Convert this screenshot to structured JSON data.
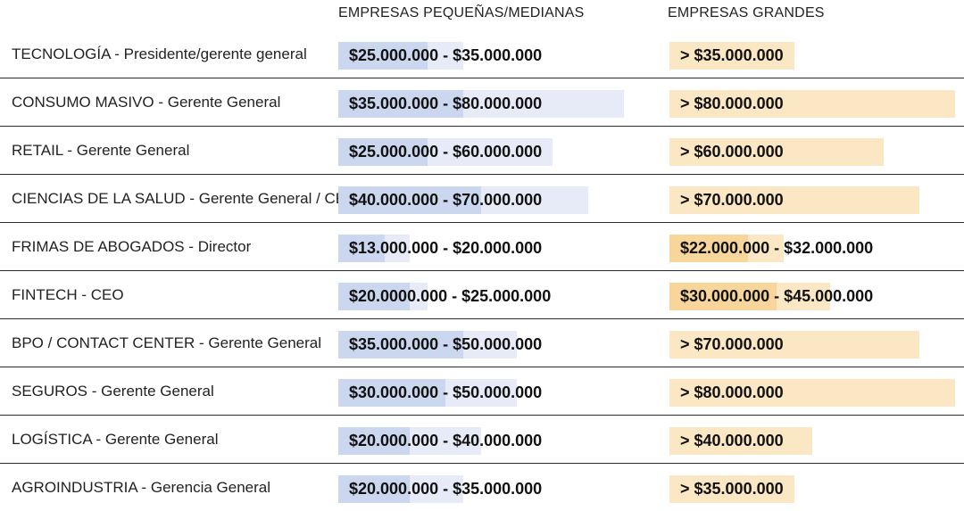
{
  "header": {
    "small_medium": "EMPRESAS PEQUEÑAS/MEDIANAS",
    "large": "EMPRESAS GRANDES"
  },
  "colors": {
    "small_range": "#e6ebf7",
    "small_min": "#cbd6ef",
    "large_range": "#fbe7c4",
    "large_min": "#f7d59b"
  },
  "chart_data": {
    "type": "bar",
    "title": "",
    "columns": [
      "EMPRESAS PEQUEÑAS/MEDIANAS",
      "EMPRESAS GRANDES"
    ],
    "rows": [
      {
        "label": "TECNOLOGÍA - Presidente/gerente general",
        "small": {
          "text": "$25.000.000 - $35.000.000",
          "min": 25000000,
          "max": 35000000
        },
        "large": {
          "text": "> $35.000.000",
          "min": 35000000
        }
      },
      {
        "label": "CONSUMO MASIVO - Gerente General",
        "small": {
          "text": "$35.000.000 - $80.000.000",
          "min": 35000000,
          "max": 80000000
        },
        "large": {
          "text": "> $80.000.000",
          "min": 80000000
        }
      },
      {
        "label": "RETAIL - Gerente General",
        "small": {
          "text": "$25.000.000 - $60.000.000",
          "min": 25000000,
          "max": 60000000
        },
        "large": {
          "text": "> $60.000.000",
          "min": 60000000
        }
      },
      {
        "label": "CIENCIAS DE LA SALUD - Gerente General / CEO",
        "small": {
          "text": "$40.000.000 - $70.000.000",
          "min": 40000000,
          "max": 70000000
        },
        "large": {
          "text": "> $70.000.000",
          "min": 70000000
        }
      },
      {
        "label": "FRIMAS DE ABOGADOS - Director",
        "small": {
          "text": "$13.000.000 - $20.000.000",
          "min": 13000000,
          "max": 20000000
        },
        "large": {
          "text": "$22.000.000 - $32.000.000",
          "min": 22000000,
          "max": 32000000
        }
      },
      {
        "label": "FINTECH - CEO",
        "small": {
          "text": "$20.0000.000 - $25.000.000",
          "min": 20000000,
          "max": 25000000
        },
        "large": {
          "text": "$30.000.000 - $45.000.000",
          "min": 30000000,
          "max": 45000000
        }
      },
      {
        "label": "BPO / CONTACT CENTER - Gerente General",
        "small": {
          "text": "$35.000.000 - $50.000.000",
          "min": 35000000,
          "max": 50000000
        },
        "large": {
          "text": "> $70.000.000",
          "min": 70000000
        }
      },
      {
        "label": "SEGUROS - Gerente General",
        "small": {
          "text": "$30.000.000 - $50.000.000",
          "min": 30000000,
          "max": 50000000
        },
        "large": {
          "text": "> $80.000.000",
          "min": 80000000
        }
      },
      {
        "label": "LOGÍSTICA - Gerente General",
        "small": {
          "text": "$20.000.000 - $40.000.000",
          "min": 20000000,
          "max": 40000000
        },
        "large": {
          "text": "> $40.000.000",
          "min": 40000000
        }
      },
      {
        "label": "AGROINDUSTRIA - Gerencia General",
        "small": {
          "text": "$20.000.000 - $35.000.000",
          "min": 20000000,
          "max": 35000000
        },
        "large": {
          "text": "> $35.000.000",
          "min": 35000000
        }
      }
    ]
  }
}
